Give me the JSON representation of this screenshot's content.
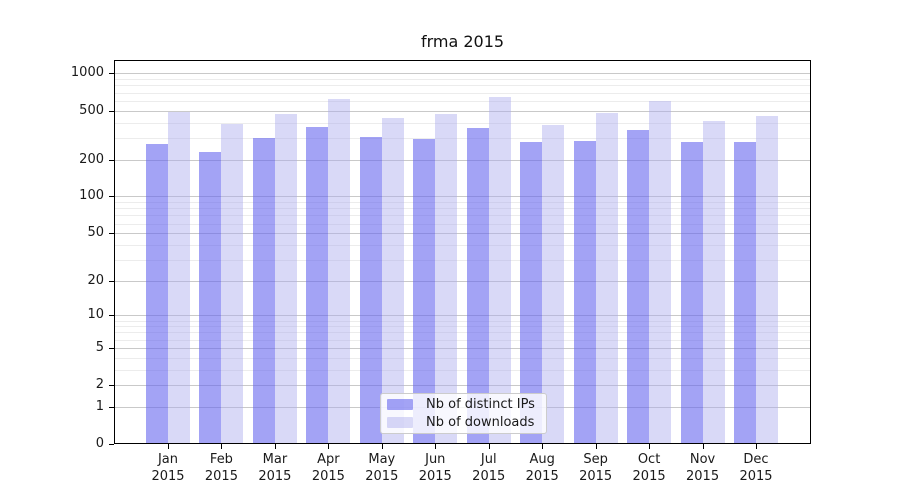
{
  "chart_data": {
    "type": "bar",
    "title": "frma 2015",
    "scale": "log1p",
    "grid": "on",
    "legend_position": "lower center",
    "year": "2015",
    "months": [
      "Jan",
      "Feb",
      "Mar",
      "Apr",
      "May",
      "Jun",
      "Jul",
      "Aug",
      "Sep",
      "Oct",
      "Nov",
      "Dec"
    ],
    "categories": [
      "Jan 2015",
      "Feb 2015",
      "Mar 2015",
      "Apr 2015",
      "May 2015",
      "Jun 2015",
      "Jul 2015",
      "Aug 2015",
      "Sep 2015",
      "Oct 2015",
      "Nov 2015",
      "Dec 2015"
    ],
    "series": [
      {
        "name": "Nb of distinct IPs",
        "values": [
          268,
          231,
          300,
          369,
          304,
          296,
          362,
          277,
          282,
          351,
          277,
          278
        ]
      },
      {
        "name": "Nb of downloads",
        "values": [
          485,
          390,
          467,
          615,
          436,
          465,
          641,
          385,
          480,
          595,
          410,
          456
        ]
      }
    ],
    "y_ticks": [
      0,
      1,
      2,
      5,
      10,
      20,
      50,
      100,
      200,
      500,
      1000
    ],
    "y_minor_ticks": [
      3,
      4,
      6,
      7,
      8,
      9,
      30,
      40,
      60,
      70,
      80,
      90,
      300,
      400,
      600,
      700,
      800,
      900
    ],
    "ylim": [
      0,
      1300
    ]
  },
  "colors": {
    "distinct_ips": "rgba(102,102,238,0.6)",
    "downloads": "rgba(170,170,238,0.45)",
    "distinct_ips_hex": "#a3a3f4",
    "downloads_hex": "#dcdcf8",
    "major_grid": "#c9c9c9",
    "minor_grid": "#ececec",
    "axis": "#000000",
    "text": "#1a1a1a",
    "legend_bg": "rgba(255,255,255,0.8)",
    "legend_border": "#cccccc"
  }
}
